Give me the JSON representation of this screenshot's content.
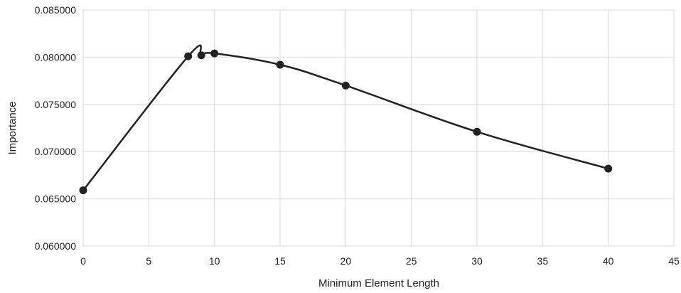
{
  "chart_data": {
    "type": "line",
    "title": "",
    "xlabel": "Minimum Element Length",
    "ylabel": "Importance",
    "xlim": [
      0,
      45
    ],
    "ylim": [
      0.06,
      0.085
    ],
    "x_ticks": [
      0,
      5,
      10,
      15,
      20,
      25,
      30,
      35,
      40,
      45
    ],
    "x_tick_labels": [
      "0",
      "5",
      "10",
      "15",
      "20",
      "25",
      "30",
      "35",
      "40",
      "45"
    ],
    "y_ticks": [
      0.06,
      0.065,
      0.07,
      0.075,
      0.08,
      0.085
    ],
    "y_tick_labels": [
      "0.060000",
      "0.065000",
      "0.070000",
      "0.075000",
      "0.080000",
      "0.085000"
    ],
    "grid": true,
    "line_color": "#222222",
    "grid_color": "#d9d9d9",
    "series": [
      {
        "x": [
          0,
          8,
          9,
          10,
          15,
          20,
          30,
          40
        ],
        "y": [
          0.0659,
          0.0801,
          0.0802,
          0.0804,
          0.0792,
          0.077,
          0.0721,
          0.0682
        ]
      }
    ]
  }
}
